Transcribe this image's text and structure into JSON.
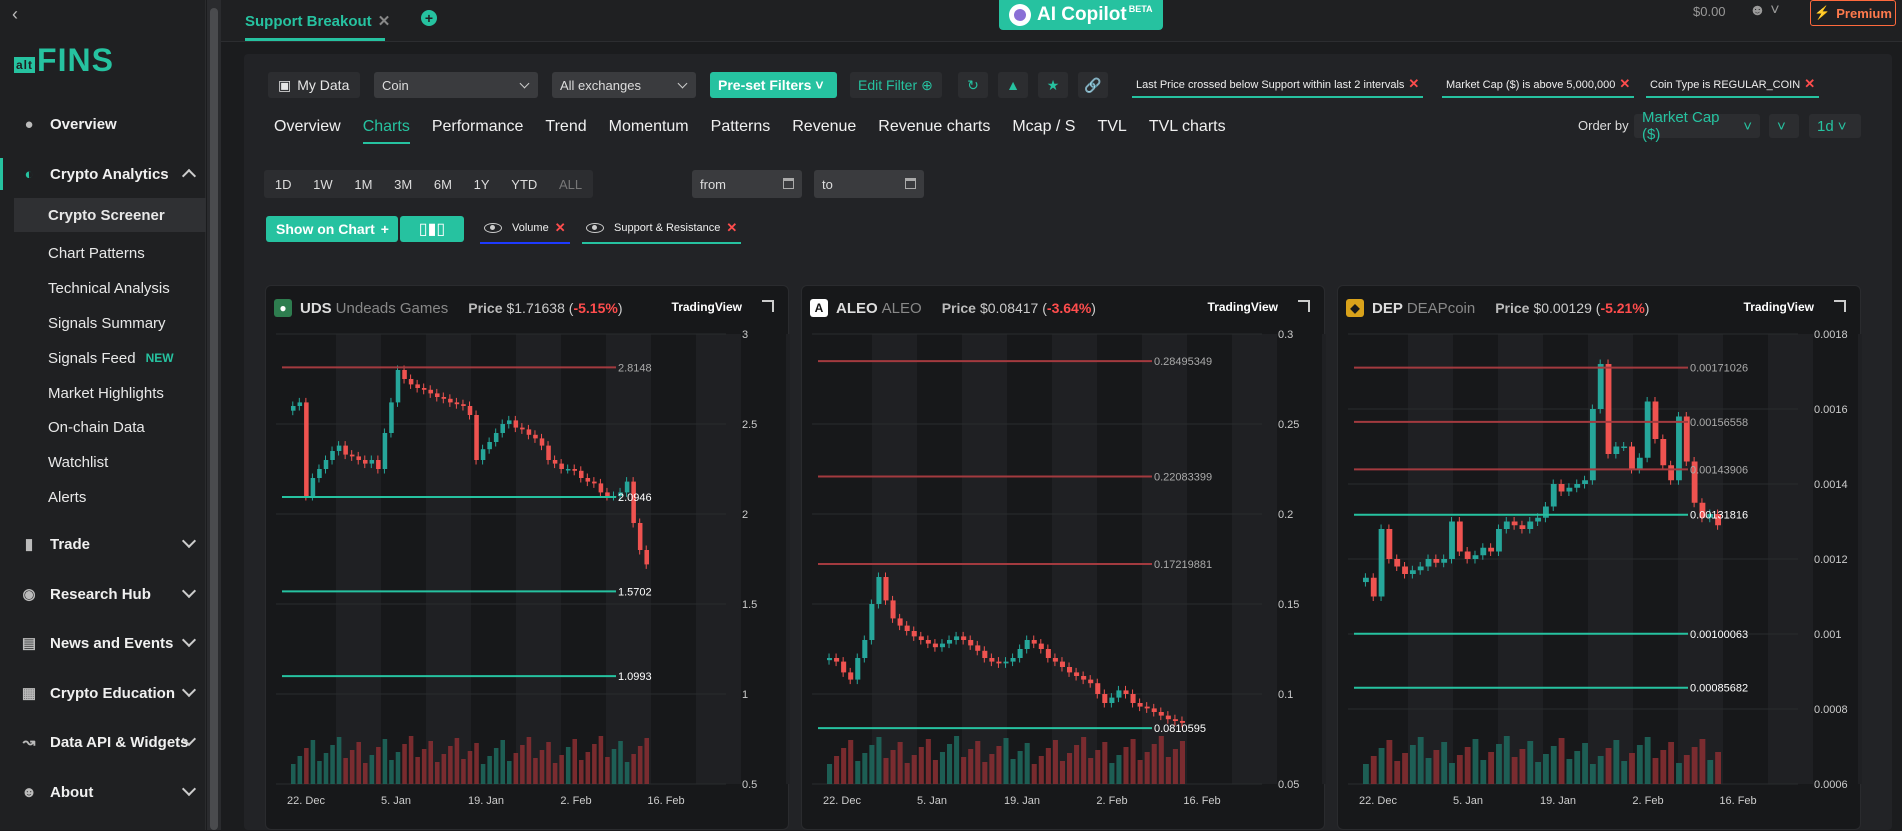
{
  "sidebar": {
    "logo_prefix": "alt",
    "logo": "FINS",
    "items": [
      {
        "label": "Overview",
        "icon": "overview-icon"
      },
      {
        "label": "Crypto Analytics",
        "icon": "pie-chart-icon"
      },
      {
        "label": "Trade",
        "icon": "bar-chart-icon"
      },
      {
        "label": "Research Hub",
        "icon": "binoculars-icon"
      },
      {
        "label": "News and Events",
        "icon": "newspaper-icon"
      },
      {
        "label": "Crypto Education",
        "icon": "puzzle-icon"
      },
      {
        "label": "Data API & Widgets",
        "icon": "api-icon"
      },
      {
        "label": "About",
        "icon": "users-icon"
      }
    ],
    "sub_items": [
      "Crypto Screener",
      "Chart Patterns",
      "Technical Analysis",
      "Signals Summary",
      "Signals Feed",
      "Market Highlights",
      "On-chain Data",
      "Watchlist",
      "Alerts"
    ],
    "new_badge": "NEW"
  },
  "topbar": {
    "tab_label": "Support Breakout",
    "copilot": "AI Copilot",
    "copilot_badge": "BETA",
    "balance": "$0.00",
    "premium": "Premium"
  },
  "filters": {
    "my_data": "My Data",
    "coin_select": "Coin",
    "exchange_select": "All exchanges",
    "preset": "Pre-set Filters",
    "edit": "Edit Filter",
    "chips": [
      "Last Price crossed below Support within last 2 intervals",
      "Market Cap ($) is above 5,000,000",
      "Coin Type is REGULAR_COIN"
    ]
  },
  "subtabs": [
    "Overview",
    "Charts",
    "Performance",
    "Trend",
    "Momentum",
    "Patterns",
    "Revenue",
    "Revenue charts",
    "Mcap / S",
    "TVL",
    "TVL charts"
  ],
  "order": {
    "label": "Order by",
    "value": "Market Cap ($)",
    "interval": "1d"
  },
  "periods": [
    "1D",
    "1W",
    "1M",
    "3M",
    "6M",
    "1Y",
    "YTD",
    "ALL"
  ],
  "dates": {
    "from": "from",
    "to": "to"
  },
  "controls": {
    "show_on_chart": "Show on Chart",
    "volume": "Volume",
    "support": "Support & Resistance"
  },
  "cards": [
    {
      "symbol": "UDS",
      "name": "Undeads Games",
      "price_label": "Price",
      "price": "$1.71638",
      "change": "-5.15%",
      "tv": "TradingView",
      "icon_color": "#2e7d4f"
    },
    {
      "symbol": "ALEO",
      "name": "ALEO",
      "price_label": "Price",
      "price": "$0.08417",
      "change": "-3.64%",
      "tv": "TradingView",
      "icon_color": "#ffffff"
    },
    {
      "symbol": "DEP",
      "name": "DEAPcoin",
      "price_label": "Price",
      "price": "$0.00129",
      "change": "-5.21%",
      "tv": "TradingView",
      "icon_color": "#d9a21b"
    }
  ],
  "chart_data": [
    {
      "type": "candlestick",
      "x_ticks": [
        "22. Dec",
        "5. Jan",
        "19. Jan",
        "2. Feb",
        "16. Feb"
      ],
      "y_ticks": [
        "3",
        "2.5",
        "2",
        "1.5",
        "1",
        "0.5"
      ],
      "ylim": [
        0.5,
        3
      ],
      "levels": [
        {
          "label": "2.8148",
          "type": "resistance"
        },
        {
          "label": "2.0946",
          "type": "support"
        },
        {
          "label": "1.5702",
          "type": "support"
        },
        {
          "label": "1.0993",
          "type": "support"
        }
      ],
      "close": [
        2.6,
        2.62,
        2.1,
        2.2,
        2.25,
        2.3,
        2.35,
        2.38,
        2.33,
        2.32,
        2.3,
        2.28,
        2.3,
        2.25,
        2.45,
        2.62,
        2.8,
        2.75,
        2.72,
        2.7,
        2.69,
        2.67,
        2.65,
        2.64,
        2.62,
        2.61,
        2.6,
        2.55,
        2.3,
        2.36,
        2.4,
        2.45,
        2.5,
        2.52,
        2.48,
        2.47,
        2.44,
        2.42,
        2.38,
        2.3,
        2.28,
        2.25,
        2.25,
        2.24,
        2.2,
        2.18,
        2.17,
        2.12,
        2.1,
        2.1,
        2.12,
        2.18,
        1.95,
        1.8,
        1.72
      ]
    },
    {
      "type": "candlestick",
      "x_ticks": [
        "22. Dec",
        "5. Jan",
        "19. Jan",
        "2. Feb",
        "16. Feb"
      ],
      "y_ticks": [
        "0.3",
        "0.25",
        "0.2",
        "0.15",
        "0.1",
        "0.05"
      ],
      "ylim": [
        0.05,
        0.3
      ],
      "levels": [
        {
          "label": "0.28495349",
          "type": "resistance"
        },
        {
          "label": "0.22083399",
          "type": "resistance"
        },
        {
          "label": "0.17219881",
          "type": "resistance"
        },
        {
          "label": "0.0810595",
          "type": "support"
        }
      ],
      "close": [
        0.12,
        0.118,
        0.112,
        0.108,
        0.12,
        0.13,
        0.15,
        0.165,
        0.152,
        0.142,
        0.138,
        0.135,
        0.132,
        0.13,
        0.128,
        0.126,
        0.128,
        0.13,
        0.132,
        0.13,
        0.127,
        0.124,
        0.12,
        0.118,
        0.117,
        0.118,
        0.12,
        0.125,
        0.13,
        0.128,
        0.125,
        0.12,
        0.118,
        0.115,
        0.112,
        0.11,
        0.108,
        0.106,
        0.1,
        0.095,
        0.098,
        0.102,
        0.1,
        0.095,
        0.093,
        0.092,
        0.09,
        0.088,
        0.086,
        0.085,
        0.084
      ]
    },
    {
      "type": "candlestick",
      "x_ticks": [
        "22. Dec",
        "5. Jan",
        "19. Jan",
        "2. Feb",
        "16. Feb"
      ],
      "y_ticks": [
        "0.0018",
        "0.0016",
        "0.0014",
        "0.0012",
        "0.001",
        "0.0008",
        "0.0006"
      ],
      "ylim": [
        0.0006,
        0.0018
      ],
      "levels": [
        {
          "label": "0.00171026",
          "type": "resistance"
        },
        {
          "label": "0.00156558",
          "type": "resistance"
        },
        {
          "label": "0.00143906",
          "type": "resistance"
        },
        {
          "label": "0.00131816",
          "type": "support"
        },
        {
          "label": "0.00100063",
          "type": "support"
        },
        {
          "label": "0.00085682",
          "type": "support"
        }
      ],
      "close": [
        0.00115,
        0.0011,
        0.00128,
        0.0012,
        0.00118,
        0.00116,
        0.00117,
        0.00118,
        0.0012,
        0.00119,
        0.0012,
        0.0013,
        0.00122,
        0.0012,
        0.00121,
        0.00123,
        0.00122,
        0.00128,
        0.0013,
        0.00129,
        0.00128,
        0.0013,
        0.00131,
        0.00134,
        0.0014,
        0.00138,
        0.00139,
        0.0014,
        0.00141,
        0.0016,
        0.00172,
        0.00148,
        0.0015,
        0.0015,
        0.00144,
        0.00147,
        0.00162,
        0.00152,
        0.00145,
        0.00141,
        0.00158,
        0.00146,
        0.00135,
        0.00131,
        0.00132,
        0.00129
      ]
    }
  ]
}
